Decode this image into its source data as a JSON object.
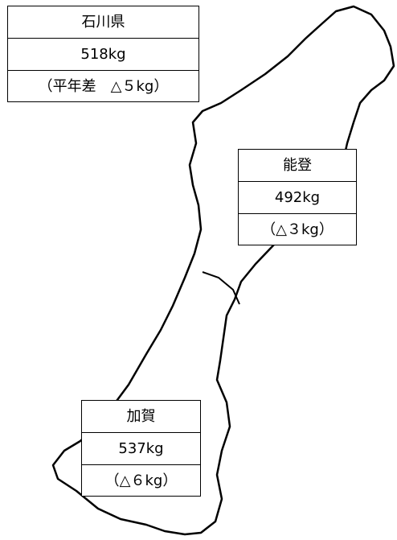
{
  "boxes": [
    {
      "title": "石川県",
      "value": "518kg",
      "note": "（平年差　△５kg）"
    },
    {
      "title": "能登",
      "value": "492kg",
      "note": "（△３kg）"
    },
    {
      "title": "加賀",
      "value": "537kg",
      "note": "（△６kg）"
    }
  ]
}
